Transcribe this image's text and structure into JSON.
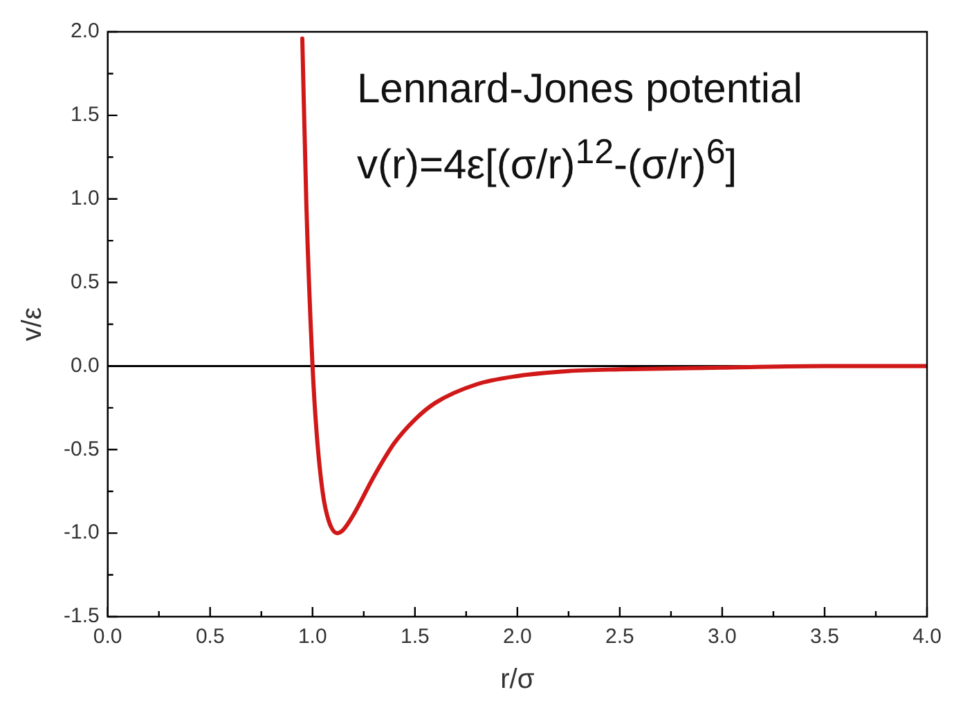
{
  "chart_data": {
    "type": "line",
    "xlabel": "r/σ",
    "ylabel": "v/ε",
    "annotations": [
      "Lennard-Jones potential",
      "v(r)=4ε[(σ/r)$^{12}$-(σ/r)$^{6}$]"
    ],
    "x": [
      0.95,
      0.97,
      1.0,
      1.02,
      1.05,
      1.08,
      1.12,
      1.15,
      1.2,
      1.3,
      1.4,
      1.5,
      1.6,
      1.8,
      2.0,
      2.25,
      2.5,
      3.0,
      3.5,
      4.0
    ],
    "series": [
      {
        "color": "#d01818",
        "values": [
          1.96,
          0.96,
          0,
          -0.4,
          -0.76,
          -0.93,
          -1.0,
          -0.98,
          -0.89,
          -0.66,
          -0.46,
          -0.32,
          -0.22,
          -0.11,
          -0.06,
          -0.03,
          -0.02,
          -0.01,
          0,
          0
        ]
      }
    ],
    "xlim": [
      0,
      4
    ],
    "xticks": [
      {
        "value": 0,
        "label": "0.0"
      },
      0.5,
      {
        "value": 1,
        "label": "1.0"
      },
      1.5,
      {
        "value": 2,
        "label": "2.0"
      },
      2.5,
      {
        "value": 3,
        "label": "3.0"
      },
      3.5,
      {
        "value": 4,
        "label": "4.0"
      }
    ],
    "ylim": [
      -1.5,
      2
    ],
    "yticks": [
      -1.5,
      {
        "value": -1,
        "label": "-1.0"
      },
      -0.5,
      {
        "value": 0,
        "label": "0.0"
      },
      0.5,
      {
        "value": 1,
        "label": "1.0"
      },
      1.5,
      {
        "value": 2,
        "label": "2.0"
      }
    ],
    "ref_lines": [
      {
        "axis": "y",
        "value": 0,
        "color": "#000000"
      }
    ],
    "grid": false,
    "legend": false,
    "marker": "none",
    "line_style": "solid"
  }
}
